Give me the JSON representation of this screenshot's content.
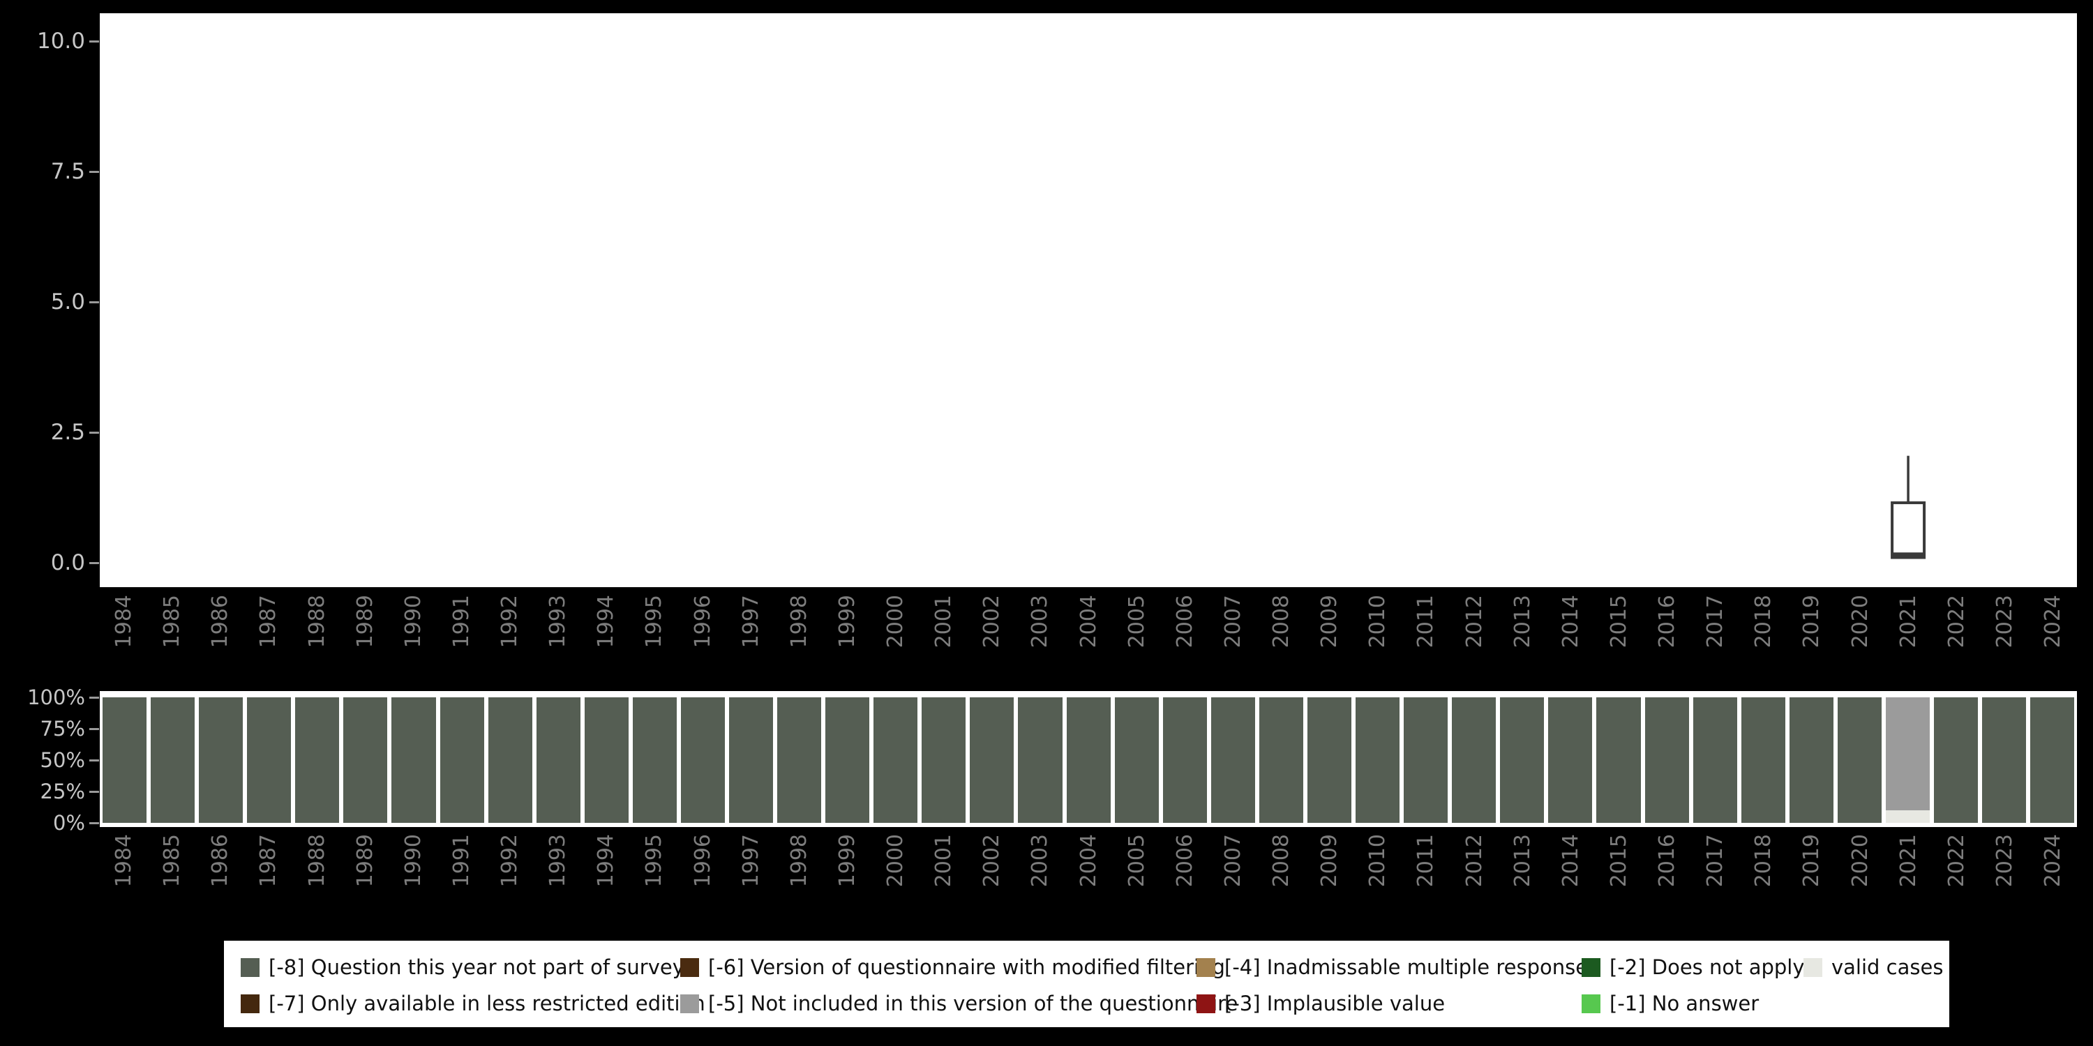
{
  "figure": {
    "background": "#000000",
    "panel_background": "#ffffff",
    "axis_label_color": "#7d7d7d",
    "tick_label_color": "#c6c6c6"
  },
  "years": [
    "1984",
    "1985",
    "1986",
    "1987",
    "1988",
    "1989",
    "1990",
    "1991",
    "1992",
    "1993",
    "1994",
    "1995",
    "1996",
    "1997",
    "1998",
    "1999",
    "2000",
    "2001",
    "2002",
    "2003",
    "2004",
    "2005",
    "2006",
    "2007",
    "2008",
    "2009",
    "2010",
    "2011",
    "2012",
    "2013",
    "2014",
    "2015",
    "2016",
    "2017",
    "2018",
    "2019",
    "2020",
    "2021",
    "2022",
    "2023",
    "2024"
  ],
  "top_chart_yticks": [
    "10.0",
    "7.5",
    "5.0",
    "2.5",
    "0.0"
  ],
  "bottom_chart_yticks": [
    "100%",
    "75%",
    "50%",
    "25%",
    "0%"
  ],
  "chart_data": [
    {
      "type": "boxplot",
      "title": "",
      "categories_from": "years",
      "ylim": [
        0,
        10
      ],
      "yticks": [
        10.0,
        7.5,
        5.0,
        2.5,
        0.0
      ],
      "grid": false,
      "boxes": [
        {
          "category": "2021",
          "whisker_low": 0.1,
          "q1": 0.1,
          "median": 0.15,
          "q3": 1.15,
          "whisker_high": 2.05,
          "stroke": "#3a3a3a",
          "fill": "#ffffff"
        }
      ]
    },
    {
      "type": "bar",
      "stacked": true,
      "units": "percent",
      "title": "",
      "categories_from": "years",
      "ylim": [
        0,
        100
      ],
      "yticks": [
        "100%",
        "75%",
        "50%",
        "25%",
        "0%"
      ],
      "legend_position": "bottom",
      "series": [
        {
          "name": "valid cases",
          "color": "#e7e8e2",
          "values": [
            0,
            0,
            0,
            0,
            0,
            0,
            0,
            0,
            0,
            0,
            0,
            0,
            0,
            0,
            0,
            0,
            0,
            0,
            0,
            0,
            0,
            0,
            0,
            0,
            0,
            0,
            0,
            0,
            0,
            0,
            0,
            0,
            0,
            0,
            0,
            0,
            0,
            10,
            0,
            0,
            0
          ]
        },
        {
          "name": "[-5] Not included in this version of the questionnaire",
          "color": "#9b9b9b",
          "values": [
            0,
            0,
            0,
            0,
            0,
            0,
            0,
            0,
            0,
            0,
            0,
            0,
            0,
            0,
            0,
            0,
            0,
            0,
            0,
            0,
            0,
            0,
            0,
            0,
            0,
            0,
            0,
            0,
            0,
            0,
            0,
            0,
            0,
            0,
            0,
            0,
            0,
            90,
            0,
            0,
            0
          ]
        },
        {
          "name": "[-8] Question this year not part of survey",
          "color": "#555e53",
          "values": [
            100,
            100,
            100,
            100,
            100,
            100,
            100,
            100,
            100,
            100,
            100,
            100,
            100,
            100,
            100,
            100,
            100,
            100,
            100,
            100,
            100,
            100,
            100,
            100,
            100,
            100,
            100,
            100,
            100,
            100,
            100,
            100,
            100,
            100,
            100,
            100,
            100,
            0,
            100,
            100,
            100
          ]
        }
      ]
    }
  ],
  "legend": {
    "rows": [
      [
        {
          "label": "[-8] Question this year not part of survey",
          "color": "#555e53"
        },
        {
          "label": "[-6] Version of questionnaire with modified filtering",
          "color": "#4a2b10"
        },
        {
          "label": "[-4] Inadmissable multiple response",
          "color": "#a3814e"
        },
        {
          "label": "[-2] Does not apply",
          "color": "#1c5a20"
        },
        {
          "label": "valid cases",
          "color": "#e7e8e2"
        }
      ],
      [
        {
          "label": "[-7] Only available in less restricted edition",
          "color": "#44280e"
        },
        {
          "label": "[-5] Not included in this version of the questionnaire",
          "color": "#9b9b9b"
        },
        {
          "label": "[-3] Implausible value",
          "color": "#8e1414"
        },
        {
          "label": "[-1] No answer",
          "color": "#57c84f"
        }
      ]
    ]
  }
}
